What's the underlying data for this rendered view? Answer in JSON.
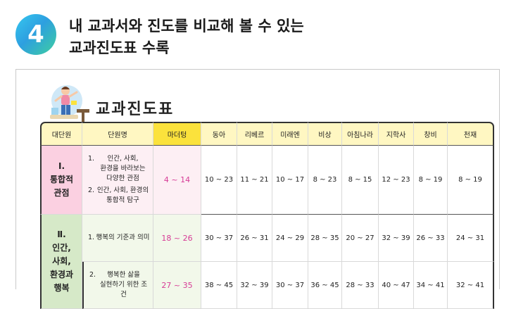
{
  "badge": "4",
  "heading": {
    "line1": "내 교과서와 진도를 비교해 볼 수 있는",
    "line2": "교과진도표 수록"
  },
  "panel_title": "교과진도표",
  "table": {
    "headers": [
      "대단원",
      "단원명",
      "마더텅",
      "동아",
      "리베르",
      "미래엔",
      "비상",
      "아침나라",
      "지학사",
      "창비",
      "천재"
    ],
    "highlight_column": "마더텅",
    "units": [
      {
        "name_num": "Ⅰ.",
        "name": "통합적\n관점",
        "lessons": [
          {
            "label": "1. 인간, 사회, 환경을 바라보는 다양한 관점",
            "num": "1.",
            "text_lines": [
              "인간, 사회,",
              "환경을 바라보는",
              "다양한 관점"
            ]
          },
          {
            "label": "2. 인간, 사회, 환경의 통합적 탐구",
            "num": "2.",
            "text_lines": [
              "인간, 사회, 환경의",
              "통합적 탐구"
            ]
          }
        ],
        "rows": [
          [
            "4 ~ 14",
            "10 ~ 23",
            "11 ~ 21",
            "10 ~ 17",
            "8 ~ 23",
            "8 ~ 15",
            "12 ~ 23",
            "8 ~ 19",
            "8 ~ 19"
          ]
        ]
      },
      {
        "name_num": "Ⅱ.",
        "name": "인간,\n사회,\n환경과\n행복",
        "lessons": [
          {
            "label": "1. 행복의 기준과 의미",
            "num": "1.",
            "text_lines": [
              "행복의 기준과 의미"
            ]
          },
          {
            "label": "2. 행복한 삶을 실현하기 위한 조건",
            "num": "2.",
            "text_lines": [
              "행복한 삶을",
              "실현하기 위한 조건"
            ]
          }
        ],
        "rows": [
          [
            "18 ~ 26",
            "30 ~ 37",
            "26 ~ 31",
            "24 ~ 29",
            "28 ~ 35",
            "20 ~ 27",
            "32 ~ 39",
            "26 ~ 33",
            "24 ~ 31"
          ],
          [
            "27 ~ 35",
            "38 ~ 45",
            "32 ~ 39",
            "30 ~ 37",
            "36 ~ 45",
            "28 ~ 33",
            "40 ~ 47",
            "34 ~ 41",
            "32 ~ 41"
          ]
        ]
      }
    ]
  },
  "colors": {
    "header_bg": "#fff7c2",
    "highlight_bg": "#fbe23c",
    "unit1_bg": "#fbd0e1",
    "unit2_bg": "#d6e9c8",
    "accent_pink": "#d63b96",
    "badge_gradient": [
      "#36c8ef",
      "#3fcfa0"
    ]
  },
  "icons": {
    "badge": "number-4-badge",
    "mascot": "student-character-illustration"
  }
}
